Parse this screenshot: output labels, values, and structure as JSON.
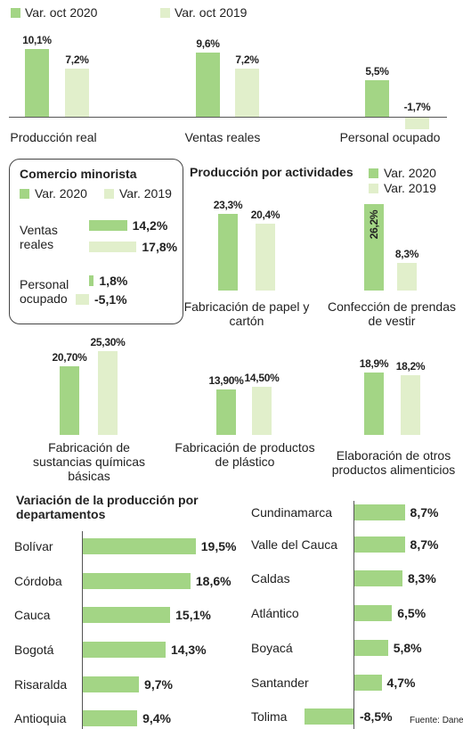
{
  "chart_data": [
    {
      "type": "bar",
      "categories": [
        "Producción real",
        "Ventas reales",
        "Personal ocupado"
      ],
      "series": [
        {
          "name": "Var. oct 2020",
          "color": "#a3d585",
          "values": [
            10.1,
            9.6,
            5.5
          ],
          "value_labels": [
            "10,1%",
            "9,6%",
            "5,5%"
          ]
        },
        {
          "name": "Var. oct 2019",
          "color": "#e1efcb",
          "values": [
            7.2,
            7.2,
            -1.7
          ],
          "value_labels": [
            "7,2%",
            "7,2%",
            "-1,7%"
          ]
        }
      ]
    },
    {
      "type": "hbar",
      "title": "Comercio minorista",
      "categories": [
        "Ventas reales",
        "Personal ocupado"
      ],
      "series": [
        {
          "name": "Var. 2020",
          "color": "#a3d585",
          "values": [
            14.2,
            1.8
          ],
          "value_labels": [
            "14,2%",
            "1,8%"
          ]
        },
        {
          "name": "Var. 2019",
          "color": "#e1efcb",
          "values": [
            17.8,
            -5.1
          ],
          "value_labels": [
            "17,8%",
            "-5,1%"
          ]
        }
      ]
    },
    {
      "type": "bar",
      "title": "Producción por actividades",
      "categories": [
        "Fabricación de papel y cartón",
        "Confección de prendas de vestir",
        "Fabricación de sustancias químicas básicas",
        "Fabricación de productos de plástico",
        "Elaboración de otros productos alimenticios"
      ],
      "series": [
        {
          "name": "Var. 2020",
          "color": "#a3d585",
          "values": [
            23.3,
            26.2,
            20.7,
            13.9,
            18.9
          ],
          "value_labels": [
            "23,3%",
            "26,2%",
            "20,70%",
            "13,90%",
            "18,9%"
          ]
        },
        {
          "name": "Var. 2019",
          "color": "#e1efcb",
          "values": [
            20.4,
            8.3,
            25.3,
            14.5,
            18.2
          ],
          "value_labels": [
            "20,4%",
            "8,3%",
            "25,30%",
            "14,50%",
            "18,2%"
          ]
        }
      ]
    },
    {
      "type": "hbar",
      "title": "Variación de la producción por departamentos",
      "categories": [
        "Bolívar",
        "Córdoba",
        "Cauca",
        "Bogotá",
        "Risaralda",
        "Antioquia",
        "Cundinamarca",
        "Valle del Cauca",
        "Caldas",
        "Atlántico",
        "Boyacá",
        "Santander",
        "Tolima"
      ],
      "series": [
        {
          "color": "#a3d585",
          "values": [
            19.5,
            18.6,
            15.1,
            14.3,
            9.7,
            9.4,
            8.7,
            8.7,
            8.3,
            6.5,
            5.8,
            4.7,
            -8.5
          ],
          "value_labels": [
            "19,5%",
            "18,6%",
            "15,1%",
            "14,3%",
            "9,7%",
            "9,4%",
            "8,7%",
            "8,7%",
            "8,3%",
            "6,5%",
            "5,8%",
            "4,7%",
            "-8,5%"
          ]
        }
      ],
      "source": "Fuente: Dane"
    }
  ]
}
